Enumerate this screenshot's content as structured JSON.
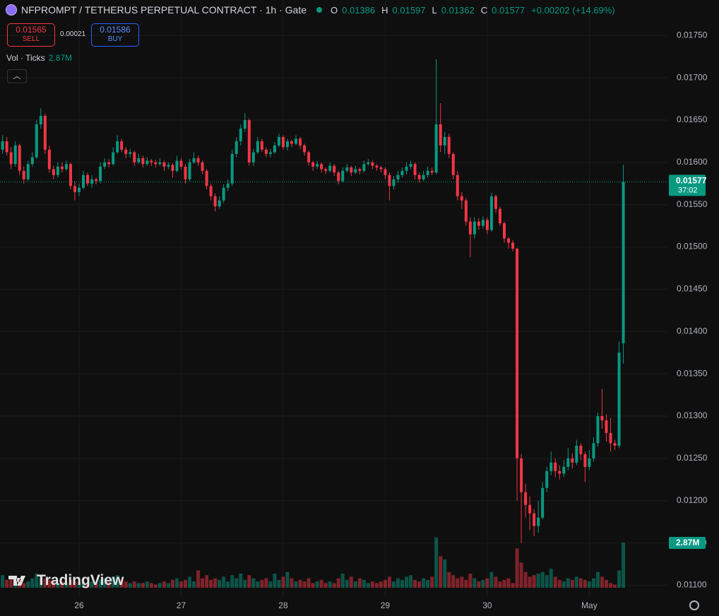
{
  "header": {
    "title": "NFPROMPT / TETHERUS PERPETUAL CONTRACT · 1h · Gate",
    "ohlc_labels": [
      "O",
      "H",
      "L",
      "C"
    ],
    "change": "+0.00202 (+14.69%)",
    "sell": {
      "price": 0.01565,
      "label": "SELL"
    },
    "spread": 0.00021,
    "buy": {
      "price": 0.01586,
      "label": "BUY"
    },
    "countdown": "37:02",
    "watermark": "TradingView"
  },
  "chart_data": {
    "type": "candlestick",
    "candles": [
      [
        0.01615,
        0.01632,
        0.0161,
        0.01625
      ],
      [
        0.01625,
        0.0163,
        0.01608,
        0.01612
      ],
      [
        0.01612,
        0.01618,
        0.01592,
        0.01598
      ],
      [
        0.01598,
        0.01625,
        0.01595,
        0.0162
      ],
      [
        0.0162,
        0.01622,
        0.01585,
        0.0159
      ],
      [
        0.0159,
        0.01595,
        0.01575,
        0.0158
      ],
      [
        0.0158,
        0.01602,
        0.01578,
        0.01598
      ],
      [
        0.01598,
        0.01612,
        0.01595,
        0.01606
      ],
      [
        0.01606,
        0.0165,
        0.01604,
        0.01645
      ],
      [
        0.01645,
        0.01664,
        0.0164,
        0.01655
      ],
      [
        0.01655,
        0.01658,
        0.0161,
        0.01615
      ],
      [
        0.01615,
        0.0162,
        0.01588,
        0.01592
      ],
      [
        0.01592,
        0.01596,
        0.0158,
        0.01585
      ],
      [
        0.01585,
        0.016,
        0.01582,
        0.01595
      ],
      [
        0.01595,
        0.016,
        0.01588,
        0.01592
      ],
      [
        0.01592,
        0.01602,
        0.0159,
        0.01598
      ],
      [
        0.01598,
        0.016,
        0.01568,
        0.01572
      ],
      [
        0.01572,
        0.01578,
        0.01555,
        0.01565
      ],
      [
        0.01565,
        0.01575,
        0.0156,
        0.0157
      ],
      [
        0.0157,
        0.0159,
        0.01568,
        0.01585
      ],
      [
        0.01585,
        0.01588,
        0.01572,
        0.01575
      ],
      [
        0.01575,
        0.01585,
        0.0157,
        0.0158
      ],
      [
        0.0158,
        0.01582,
        0.01574,
        0.01578
      ],
      [
        0.01578,
        0.016,
        0.01575,
        0.01595
      ],
      [
        0.01595,
        0.01605,
        0.01592,
        0.016
      ],
      [
        0.016,
        0.01604,
        0.01594,
        0.01598
      ],
      [
        0.01598,
        0.01618,
        0.01596,
        0.01612
      ],
      [
        0.01612,
        0.01632,
        0.0161,
        0.01625
      ],
      [
        0.01625,
        0.01628,
        0.01612,
        0.01615
      ],
      [
        0.01615,
        0.01618,
        0.01605,
        0.0161
      ],
      [
        0.0161,
        0.01616,
        0.01606,
        0.01612
      ],
      [
        0.01612,
        0.01614,
        0.01596,
        0.016
      ],
      [
        0.016,
        0.0161,
        0.01598,
        0.01605
      ],
      [
        0.01605,
        0.01608,
        0.01594,
        0.01598
      ],
      [
        0.01598,
        0.01606,
        0.01596,
        0.01602
      ],
      [
        0.01602,
        0.01604,
        0.01596,
        0.016
      ],
      [
        0.016,
        0.01603,
        0.01594,
        0.01598
      ],
      [
        0.01598,
        0.01605,
        0.01596,
        0.016
      ],
      [
        0.016,
        0.01602,
        0.0159,
        0.01595
      ],
      [
        0.01595,
        0.016,
        0.01592,
        0.01597
      ],
      [
        0.01597,
        0.01599,
        0.01582,
        0.0159
      ],
      [
        0.0159,
        0.01608,
        0.01588,
        0.01602
      ],
      [
        0.01602,
        0.01605,
        0.01592,
        0.01595
      ],
      [
        0.01595,
        0.01598,
        0.01575,
        0.0158
      ],
      [
        0.0158,
        0.01604,
        0.01578,
        0.016
      ],
      [
        0.016,
        0.01612,
        0.01598,
        0.01605
      ],
      [
        0.01605,
        0.01608,
        0.01596,
        0.016
      ],
      [
        0.016,
        0.01602,
        0.01586,
        0.0159
      ],
      [
        0.0159,
        0.01592,
        0.01568,
        0.01572
      ],
      [
        0.01572,
        0.01575,
        0.01555,
        0.0156
      ],
      [
        0.0156,
        0.01563,
        0.01542,
        0.01548
      ],
      [
        0.01548,
        0.0156,
        0.01545,
        0.01555
      ],
      [
        0.01555,
        0.01574,
        0.01552,
        0.0157
      ],
      [
        0.0157,
        0.0158,
        0.01566,
        0.01575
      ],
      [
        0.01575,
        0.01615,
        0.01572,
        0.0161
      ],
      [
        0.0161,
        0.0163,
        0.01606,
        0.01625
      ],
      [
        0.01625,
        0.01645,
        0.0162,
        0.0164
      ],
      [
        0.0164,
        0.01658,
        0.01636,
        0.0165
      ],
      [
        0.0165,
        0.01652,
        0.01596,
        0.016
      ],
      [
        0.016,
        0.01616,
        0.01596,
        0.01612
      ],
      [
        0.01612,
        0.0163,
        0.0161,
        0.01625
      ],
      [
        0.01625,
        0.01628,
        0.01612,
        0.01615
      ],
      [
        0.01615,
        0.01618,
        0.01606,
        0.0161
      ],
      [
        0.0161,
        0.01616,
        0.01606,
        0.01612
      ],
      [
        0.01612,
        0.01624,
        0.0161,
        0.0162
      ],
      [
        0.0162,
        0.01634,
        0.01618,
        0.0163
      ],
      [
        0.0163,
        0.01632,
        0.01615,
        0.01618
      ],
      [
        0.01618,
        0.01628,
        0.01614,
        0.01625
      ],
      [
        0.01625,
        0.01627,
        0.01618,
        0.01622
      ],
      [
        0.01622,
        0.01632,
        0.0162,
        0.01628
      ],
      [
        0.01628,
        0.0163,
        0.01616,
        0.0162
      ],
      [
        0.0162,
        0.01622,
        0.01608,
        0.01612
      ],
      [
        0.01612,
        0.01614,
        0.01596,
        0.016
      ],
      [
        0.016,
        0.01602,
        0.0159,
        0.01595
      ],
      [
        0.01595,
        0.01602,
        0.01592,
        0.01598
      ],
      [
        0.01598,
        0.016,
        0.01588,
        0.01592
      ],
      [
        0.01592,
        0.01594,
        0.01586,
        0.0159
      ],
      [
        0.0159,
        0.016,
        0.01588,
        0.01596
      ],
      [
        0.01596,
        0.01598,
        0.01584,
        0.01588
      ],
      [
        0.01588,
        0.0159,
        0.01574,
        0.01578
      ],
      [
        0.01578,
        0.01594,
        0.01576,
        0.0159
      ],
      [
        0.0159,
        0.01598,
        0.01588,
        0.01594
      ],
      [
        0.01594,
        0.01596,
        0.01584,
        0.01588
      ],
      [
        0.01588,
        0.01596,
        0.01586,
        0.01592
      ],
      [
        0.01592,
        0.01594,
        0.01586,
        0.0159
      ],
      [
        0.0159,
        0.01602,
        0.01588,
        0.01598
      ],
      [
        0.01598,
        0.01604,
        0.01596,
        0.016
      ],
      [
        0.016,
        0.01602,
        0.01592,
        0.01596
      ],
      [
        0.01596,
        0.01598,
        0.0159,
        0.01594
      ],
      [
        0.01594,
        0.01596,
        0.01588,
        0.01592
      ],
      [
        0.01592,
        0.01594,
        0.0158,
        0.01585
      ],
      [
        0.01585,
        0.01588,
        0.01555,
        0.01572
      ],
      [
        0.01572,
        0.01584,
        0.01568,
        0.0158
      ],
      [
        0.0158,
        0.0159,
        0.01576,
        0.01585
      ],
      [
        0.01585,
        0.01594,
        0.01582,
        0.0159
      ],
      [
        0.0159,
        0.016,
        0.01586,
        0.01595
      ],
      [
        0.01595,
        0.01602,
        0.01592,
        0.01598
      ],
      [
        0.01598,
        0.016,
        0.0158,
        0.01585
      ],
      [
        0.01585,
        0.01588,
        0.01576,
        0.0158
      ],
      [
        0.0158,
        0.0159,
        0.01578,
        0.01585
      ],
      [
        0.01585,
        0.01595,
        0.01582,
        0.0159
      ],
      [
        0.0159,
        0.01594,
        0.01585,
        0.01588
      ],
      [
        0.01588,
        0.01722,
        0.01586,
        0.01645
      ],
      [
        0.01645,
        0.0167,
        0.01612,
        0.0162
      ],
      [
        0.0162,
        0.01636,
        0.0161,
        0.0163
      ],
      [
        0.0163,
        0.01634,
        0.01605,
        0.0161
      ],
      [
        0.0161,
        0.01612,
        0.0158,
        0.01585
      ],
      [
        0.01585,
        0.0159,
        0.01555,
        0.0156
      ],
      [
        0.0156,
        0.01565,
        0.01545,
        0.01555
      ],
      [
        0.01555,
        0.01558,
        0.01525,
        0.0153
      ],
      [
        0.0153,
        0.01535,
        0.01488,
        0.01515
      ],
      [
        0.01515,
        0.01535,
        0.0151,
        0.0153
      ],
      [
        0.0153,
        0.01534,
        0.0152,
        0.01525
      ],
      [
        0.01525,
        0.01536,
        0.01522,
        0.01532
      ],
      [
        0.01532,
        0.01535,
        0.01515,
        0.0152
      ],
      [
        0.0152,
        0.01564,
        0.01518,
        0.0156
      ],
      [
        0.0156,
        0.01562,
        0.0154,
        0.01545
      ],
      [
        0.01545,
        0.01548,
        0.01525,
        0.01528
      ],
      [
        0.01528,
        0.0153,
        0.01505,
        0.0151
      ],
      [
        0.0151,
        0.01512,
        0.01498,
        0.01505
      ],
      [
        0.01505,
        0.01508,
        0.01495,
        0.01498
      ],
      [
        0.01498,
        0.01499,
        0.012,
        0.0125
      ],
      [
        0.0125,
        0.01255,
        0.0115,
        0.0121
      ],
      [
        0.0121,
        0.0122,
        0.0118,
        0.01195
      ],
      [
        0.01195,
        0.01205,
        0.01165,
        0.01185
      ],
      [
        0.01185,
        0.0119,
        0.01158,
        0.0117
      ],
      [
        0.0117,
        0.012,
        0.01162,
        0.0118
      ],
      [
        0.0118,
        0.01222,
        0.01178,
        0.01215
      ],
      [
        0.01215,
        0.0124,
        0.0121,
        0.01235
      ],
      [
        0.01235,
        0.01258,
        0.0123,
        0.01245
      ],
      [
        0.01245,
        0.0125,
        0.01228,
        0.01235
      ],
      [
        0.01235,
        0.01242,
        0.01225,
        0.01232
      ],
      [
        0.01232,
        0.01248,
        0.01228,
        0.0124
      ],
      [
        0.0124,
        0.01262,
        0.01236,
        0.0125
      ],
      [
        0.0125,
        0.01256,
        0.01238,
        0.01245
      ],
      [
        0.01245,
        0.01272,
        0.01242,
        0.01265
      ],
      [
        0.01265,
        0.01268,
        0.01248,
        0.01255
      ],
      [
        0.01255,
        0.01258,
        0.01222,
        0.0124
      ],
      [
        0.0124,
        0.0126,
        0.01236,
        0.0125
      ],
      [
        0.0125,
        0.01275,
        0.01246,
        0.01268
      ],
      [
        0.01268,
        0.01304,
        0.01264,
        0.013
      ],
      [
        0.013,
        0.01332,
        0.01285,
        0.01295
      ],
      [
        0.01295,
        0.01302,
        0.0127,
        0.0128
      ],
      [
        0.0128,
        0.01298,
        0.01258,
        0.01268
      ],
      [
        0.01268,
        0.01272,
        0.0126,
        0.01265
      ],
      [
        0.01265,
        0.01388,
        0.01262,
        0.01375
      ],
      [
        0.01386,
        0.01597,
        0.01362,
        0.01577
      ]
    ],
    "volume": {
      "name": "Vol · Ticks",
      "last_label": "2.87M",
      "values": [
        0.8,
        0.5,
        0.6,
        0.4,
        0.5,
        0.3,
        0.4,
        0.6,
        0.9,
        0.7,
        0.6,
        0.5,
        0.4,
        0.3,
        0.4,
        0.3,
        0.5,
        0.4,
        0.3,
        0.4,
        0.3,
        0.4,
        0.3,
        0.5,
        0.6,
        0.4,
        0.7,
        0.8,
        0.5,
        0.4,
        0.3,
        0.4,
        0.3,
        0.3,
        0.4,
        0.3,
        0.2,
        0.3,
        0.4,
        0.3,
        0.5,
        0.6,
        0.4,
        0.5,
        0.7,
        0.4,
        1.1,
        0.6,
        0.8,
        0.5,
        0.6,
        0.5,
        0.7,
        0.4,
        0.8,
        0.6,
        0.9,
        0.5,
        0.8,
        0.6,
        0.4,
        0.5,
        0.6,
        0.4,
        0.9,
        0.5,
        0.7,
        1.0,
        0.6,
        0.4,
        0.5,
        0.4,
        0.6,
        0.3,
        0.4,
        0.5,
        0.3,
        0.4,
        0.3,
        0.6,
        0.9,
        0.5,
        0.7,
        0.4,
        0.6,
        0.5,
        0.3,
        0.4,
        0.3,
        0.4,
        0.5,
        0.7,
        0.4,
        0.6,
        0.5,
        0.7,
        0.8,
        0.5,
        0.4,
        0.6,
        0.5,
        0.7,
        3.2,
        2.0,
        1.8,
        1.0,
        0.8,
        0.6,
        0.7,
        0.5,
        0.9,
        0.6,
        0.4,
        0.5,
        0.6,
        1.0,
        0.7,
        0.4,
        0.5,
        0.6,
        0.3,
        2.5,
        1.6,
        1.0,
        0.7,
        0.8,
        0.9,
        1.0,
        0.8,
        1.2,
        0.7,
        0.5,
        0.4,
        0.6,
        0.5,
        0.7,
        0.6,
        0.5,
        0.4,
        0.6,
        1.0,
        0.7,
        0.5,
        0.3,
        0.2,
        1.1,
        2.87
      ]
    },
    "ylim": [
      0.01082,
      0.01792
    ],
    "yticks": [
      {
        "value": 0.011,
        "label": "0.01100"
      },
      {
        "value": 0.0115,
        "label": "0.01150"
      },
      {
        "value": 0.012,
        "label": "0.01200"
      },
      {
        "value": 0.0125,
        "label": "0.01250"
      },
      {
        "value": 0.013,
        "label": "0.01300"
      },
      {
        "value": 0.0135,
        "label": "0.01350"
      },
      {
        "value": 0.014,
        "label": "0.01400"
      },
      {
        "value": 0.0145,
        "label": "0.01450"
      },
      {
        "value": 0.015,
        "label": "0.01500"
      },
      {
        "value": 0.0155,
        "label": "0.01550"
      },
      {
        "value": 0.016,
        "label": "0.01600"
      },
      {
        "value": 0.0165,
        "label": "0.01650"
      },
      {
        "value": 0.017,
        "label": "0.01700"
      },
      {
        "value": 0.0175,
        "label": "0.01750"
      }
    ],
    "xticks": [
      {
        "value": 18,
        "label": "26"
      },
      {
        "value": 42,
        "label": "27"
      },
      {
        "value": 66,
        "label": "28"
      },
      {
        "value": 90,
        "label": "29"
      },
      {
        "value": 114,
        "label": "30"
      },
      {
        "value": 138,
        "label": "May"
      }
    ],
    "colors": {
      "up": "#089981",
      "down": "#f23645"
    },
    "grid": true
  }
}
